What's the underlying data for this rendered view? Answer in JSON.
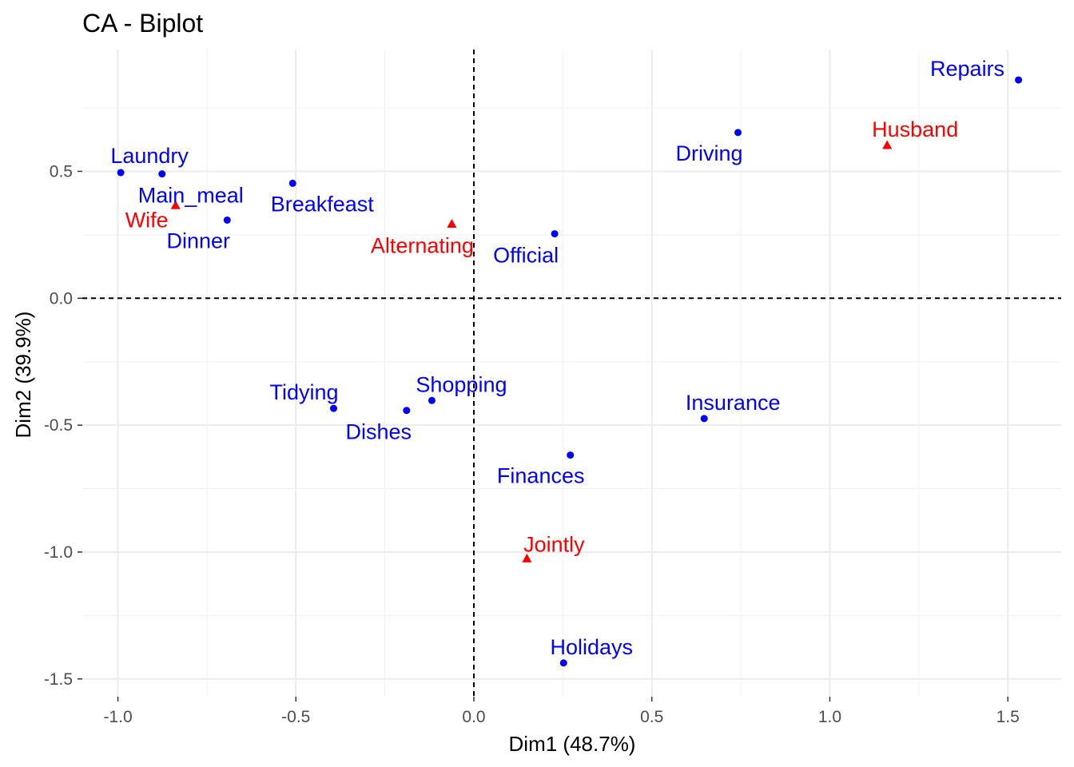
{
  "chart_data": {
    "type": "scatter",
    "title": "CA - Biplot",
    "xlabel": "Dim1 (48.7%)",
    "ylabel": "Dim2 (39.9%)",
    "xlim": [
      -1.1,
      1.65
    ],
    "ylim": [
      -1.57,
      0.98
    ],
    "x_ticks": [
      -1.0,
      -0.5,
      0.0,
      0.5,
      1.0,
      1.5
    ],
    "x_tick_labels": [
      "-1.0",
      "-0.5",
      "0.0",
      "0.5",
      "1.0",
      "1.5"
    ],
    "y_ticks": [
      0.5,
      0.0,
      -0.5,
      -1.0,
      -1.5
    ],
    "y_tick_labels": [
      "0.5",
      "0.0",
      "-0.5",
      "-1.0",
      "-1.5"
    ],
    "grid": true,
    "reference_lines": {
      "x": 0,
      "y": 0,
      "style": "dashed"
    },
    "series": [
      {
        "color": "#0000ff",
        "marker": "circle",
        "points": [
          {
            "label": "Laundry",
            "x": -0.992,
            "y": 0.495
          },
          {
            "label": "Main_meal",
            "x": -0.876,
            "y": 0.49
          },
          {
            "label": "Dinner",
            "x": -0.693,
            "y": 0.308
          },
          {
            "label": "Breakfeast",
            "x": -0.509,
            "y": 0.453
          },
          {
            "label": "Tidying",
            "x": -0.394,
            "y": -0.434
          },
          {
            "label": "Dishes",
            "x": -0.189,
            "y": -0.442
          },
          {
            "label": "Shopping",
            "x": -0.118,
            "y": -0.403
          },
          {
            "label": "Official",
            "x": 0.227,
            "y": 0.254
          },
          {
            "label": "Driving",
            "x": 0.742,
            "y": 0.653
          },
          {
            "label": "Finances",
            "x": 0.271,
            "y": -0.618
          },
          {
            "label": "Insurance",
            "x": 0.647,
            "y": -0.474
          },
          {
            "label": "Repairs",
            "x": 1.53,
            "y": 0.86
          },
          {
            "label": "Holidays",
            "x": 0.252,
            "y": -1.437
          }
        ]
      },
      {
        "color": "#ff0000",
        "marker": "triangle",
        "points": [
          {
            "label": "Wife",
            "x": -0.838,
            "y": 0.365
          },
          {
            "label": "Alternating",
            "x": -0.062,
            "y": 0.292
          },
          {
            "label": "Jointly",
            "x": 0.149,
            "y": -1.027
          },
          {
            "label": "Husband",
            "x": 1.161,
            "y": 0.602
          }
        ]
      }
    ]
  }
}
